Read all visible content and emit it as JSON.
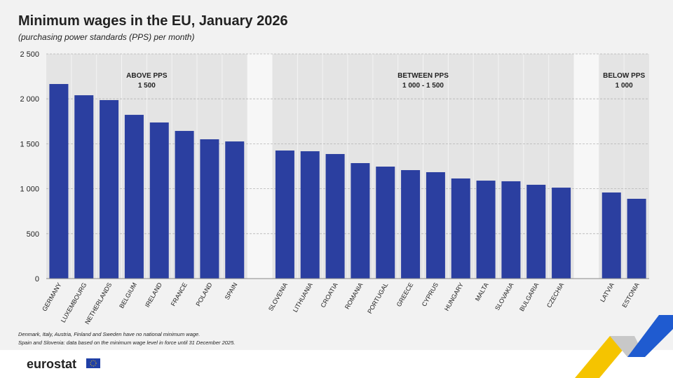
{
  "chart_data": {
    "type": "grouped-bar",
    "title": "Minimum wages in the EU, January 2026",
    "subtitle": "(purchasing power standards (PPS) per month)",
    "color": "#2b3fa0",
    "ylim": [
      0,
      2500
    ],
    "yticks": [
      0,
      500,
      {
        "value": 1000,
        "label": "1 000"
      },
      {
        "value": 1500,
        "label": "1 500"
      },
      {
        "value": 2000,
        "label": "2 000"
      },
      {
        "value": 2500,
        "label": "2 500"
      }
    ],
    "grid": true,
    "groups": [
      {
        "title": [
          "ABOVE PPS",
          "1 500"
        ],
        "categories": [
          "GERMANY",
          "LUXEMBOURG",
          "NETHERLANDS",
          "BELGIUM",
          "IRELAND",
          "FRANCE",
          "POLAND",
          "SPAIN"
        ],
        "values": [
          2165,
          2040,
          1986,
          1822,
          1737,
          1643,
          1550,
          1526
        ]
      },
      {
        "title": [
          "BETWEEN PPS",
          "1 000 - 1 500"
        ],
        "categories": [
          "SLOVENIA",
          "LITHUANIA",
          "CROATIA",
          "ROMANIA",
          "PORTUGAL",
          "GREECE",
          "CYPRUS",
          "HUNGARY",
          "MALTA",
          "SLOVAKIA",
          "BULGARIA",
          "CZECHIA"
        ],
        "values": [
          1425,
          1417,
          1386,
          1285,
          1246,
          1207,
          1184,
          1114,
          1090,
          1083,
          1044,
          1012
        ]
      },
      {
        "title": [
          "BELOW PPS",
          "1 000"
        ],
        "categories": [
          "LATVIA",
          "ESTONIA"
        ],
        "values": [
          958,
          888
        ]
      }
    ],
    "notes": [
      "Denmark, Italy, Austria, Finland and Sweden have no national minimum wage.",
      "Spain and Slovenia: data based on the minimum wage level in force until 31 December 2025."
    ],
    "source": "eurostat"
  }
}
